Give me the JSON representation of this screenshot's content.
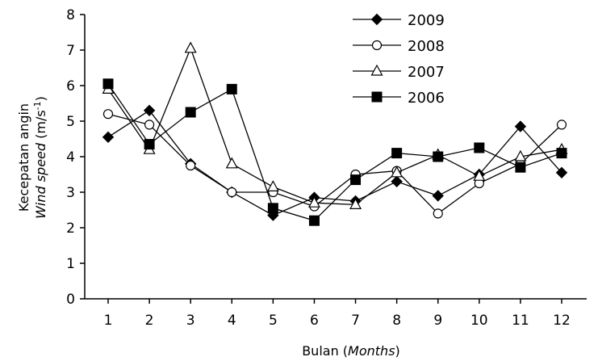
{
  "chart_data": {
    "type": "line",
    "title": "",
    "x": [
      1,
      2,
      3,
      4,
      5,
      6,
      7,
      8,
      9,
      10,
      11,
      12
    ],
    "x_tick_labels": [
      "1",
      "2",
      "3",
      "4",
      "5",
      "6",
      "7",
      "8",
      "9",
      "10",
      "11",
      "12"
    ],
    "xlabel": {
      "prefix": "Bulan (",
      "italic": "Months",
      "suffix": ")"
    },
    "ylabel": {
      "line1": "Kecepatan angin",
      "italic": "Wind speed",
      "unit": " (m/s",
      "sup": "-1",
      "close": ")"
    },
    "ylim": [
      0,
      8
    ],
    "y_ticks": [
      0,
      1,
      2,
      3,
      4,
      5,
      6,
      7,
      8
    ],
    "y_tick_labels": [
      "0",
      "1",
      "2",
      "3",
      "4",
      "5",
      "6",
      "7",
      "8"
    ],
    "grid": false,
    "legend_position": "top-right",
    "series": [
      {
        "name": "2009",
        "marker": "diamond",
        "color": "#000000",
        "values": [
          4.55,
          5.3,
          3.8,
          3.0,
          2.35,
          2.85,
          2.75,
          3.3,
          2.9,
          3.5,
          4.85,
          3.55
        ]
      },
      {
        "name": "2008",
        "marker": "circle-open",
        "color": "#000000",
        "values": [
          5.2,
          4.9,
          3.75,
          3.0,
          3.0,
          2.6,
          3.5,
          3.6,
          2.4,
          3.25,
          3.8,
          4.9
        ]
      },
      {
        "name": "2007",
        "marker": "triangle-open",
        "color": "#000000",
        "values": [
          5.9,
          4.2,
          7.05,
          3.8,
          3.15,
          2.7,
          2.65,
          3.55,
          4.05,
          3.45,
          4.0,
          4.2
        ]
      },
      {
        "name": "2006",
        "marker": "square",
        "color": "#000000",
        "values": [
          6.05,
          4.35,
          5.25,
          5.9,
          2.55,
          2.2,
          3.35,
          4.1,
          4.0,
          4.25,
          3.7,
          4.1
        ]
      }
    ]
  }
}
